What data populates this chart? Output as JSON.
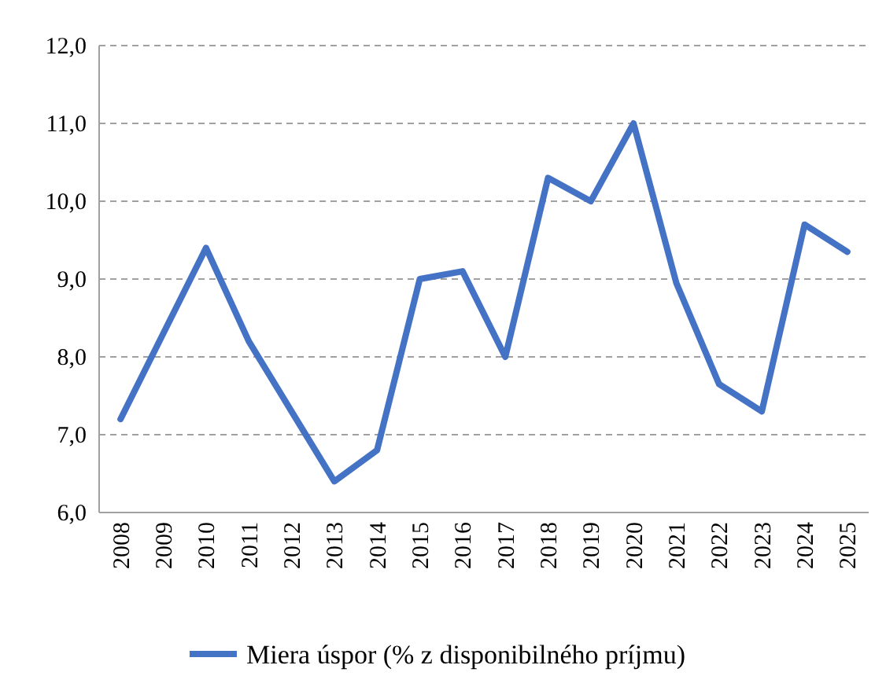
{
  "chart_data": {
    "type": "line",
    "categories": [
      "2008",
      "2009",
      "2010",
      "2011",
      "2012",
      "2013",
      "2014",
      "2015",
      "2016",
      "2017",
      "2018",
      "2019",
      "2020",
      "2021",
      "2022",
      "2023",
      "2024",
      "2025"
    ],
    "series": [
      {
        "name": "Miera úspor (% z disponibilného príjmu)",
        "color": "#4472c4",
        "values": [
          7.2,
          8.3,
          9.4,
          8.2,
          7.3,
          6.4,
          6.8,
          9.0,
          9.1,
          8.0,
          10.3,
          10.0,
          11.0,
          8.95,
          7.65,
          7.3,
          9.7,
          9.35
        ]
      }
    ],
    "ylim": [
      6,
      12
    ],
    "yticks": [
      {
        "value": 6,
        "label": "6,0"
      },
      {
        "value": 7,
        "label": "7,0"
      },
      {
        "value": 8,
        "label": "8,0"
      },
      {
        "value": 9,
        "label": "9,0"
      },
      {
        "value": 10,
        "label": "10,0"
      },
      {
        "value": 11,
        "label": "11,0"
      },
      {
        "value": 12,
        "label": "12,0"
      }
    ],
    "grid": "y",
    "legend": "bottom",
    "marker": "none",
    "line_style": "solid"
  }
}
